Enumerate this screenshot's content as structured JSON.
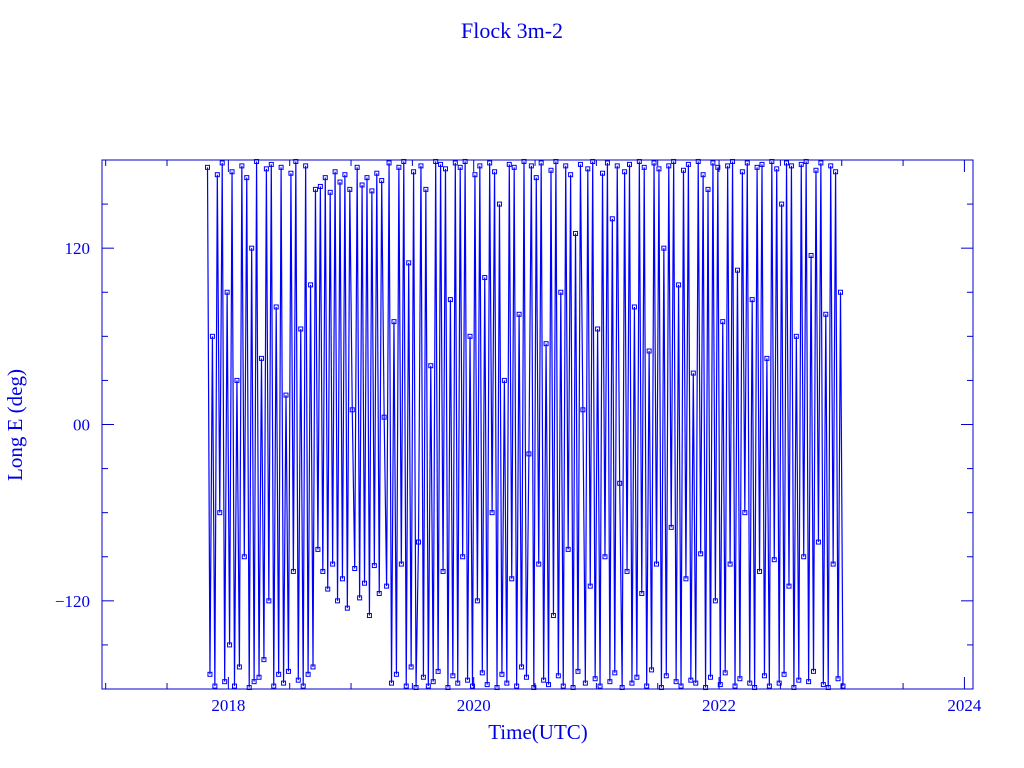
{
  "chart_data": {
    "type": "line",
    "title": "Flock 3m-2",
    "xlabel": "Time(UTC)",
    "ylabel": "Long E (deg)",
    "xlim": [
      2016.97,
      2024.07
    ],
    "ylim": [
      -180,
      180
    ],
    "x_ticks": [
      2018,
      2020,
      2022,
      2024
    ],
    "x_tick_labels": [
      "2018",
      "2020",
      "2022",
      "2024"
    ],
    "x_minor_step": 0.5,
    "y_ticks": [
      120,
      0,
      -120
    ],
    "y_tick_labels": [
      "120",
      "00",
      "-120"
    ],
    "y_minor_step": 30,
    "grid": false,
    "color": "#0000ff",
    "marker": "square",
    "series": [
      {
        "t_start": 2017.83,
        "t_step": 0.02,
        "lon": [
          175,
          -170,
          60,
          -178,
          170,
          -60,
          178,
          -175,
          90,
          -150,
          172,
          -178,
          30,
          -165,
          176,
          -90,
          168,
          -179,
          120,
          -175,
          179,
          -172,
          45,
          -160,
          174,
          -120,
          177,
          -178,
          80,
          -170,
          175,
          -176,
          20,
          -168,
          171,
          -100,
          179,
          -174,
          65,
          -178,
          176,
          -170,
          95,
          -165,
          160,
          -85,
          162,
          -100,
          168,
          -112,
          158,
          -95,
          172,
          -120,
          165,
          -105,
          170,
          -125,
          160,
          10,
          -98,
          175,
          -118,
          163,
          -108,
          168,
          -130,
          159,
          -96,
          171,
          -115,
          166,
          5,
          -110,
          178,
          -176,
          70,
          -170,
          175,
          -95,
          179,
          -178,
          110,
          -165,
          172,
          -179,
          -80,
          176,
          -172,
          160,
          -178,
          40,
          -175,
          179,
          -168,
          177,
          -100,
          174,
          -179,
          85,
          -171,
          178,
          -176,
          175,
          -90,
          179,
          -174,
          60,
          -178,
          170,
          -120,
          176,
          -169,
          100,
          -177,
          178,
          -60,
          172,
          -179,
          150,
          -170,
          30,
          -176,
          177,
          -105,
          175,
          -178,
          75,
          -165,
          179,
          -172,
          -20,
          176,
          -179,
          168,
          -95,
          178,
          -174,
          55,
          -177,
          173,
          -130,
          179,
          -171,
          90,
          -178,
          176,
          -85,
          170,
          -179,
          130,
          -168,
          177,
          10,
          -176,
          174,
          -110,
          179,
          -173,
          65,
          -178,
          171,
          -90,
          178,
          -175,
          140,
          -169,
          176,
          -40,
          -179,
          172,
          -100,
          177,
          -176,
          80,
          -172,
          179,
          -115,
          175,
          -178,
          50,
          -167,
          178,
          -95,
          174,
          -179,
          120,
          -171,
          176,
          -70,
          179,
          -175,
          95,
          -178,
          173,
          -105,
          177,
          -174,
          35,
          -176,
          179,
          -88,
          170,
          -179,
          160,
          -172,
          178,
          -120,
          175,
          -177,
          70,
          -169,
          176,
          -95,
          179,
          -178,
          105,
          -173,
          172,
          -60,
          178,
          -176,
          85,
          -179,
          175,
          -100,
          177,
          -171,
          45,
          -178,
          179,
          -92,
          174,
          -176,
          150,
          -170,
          178,
          -110,
          176,
          -179,
          60,
          -174,
          177,
          -90,
          179,
          -175,
          115,
          -168,
          173,
          -80,
          178,
          -177,
          75,
          -179,
          176,
          -95,
          172,
          -173,
          90,
          -178
        ]
      }
    ]
  }
}
